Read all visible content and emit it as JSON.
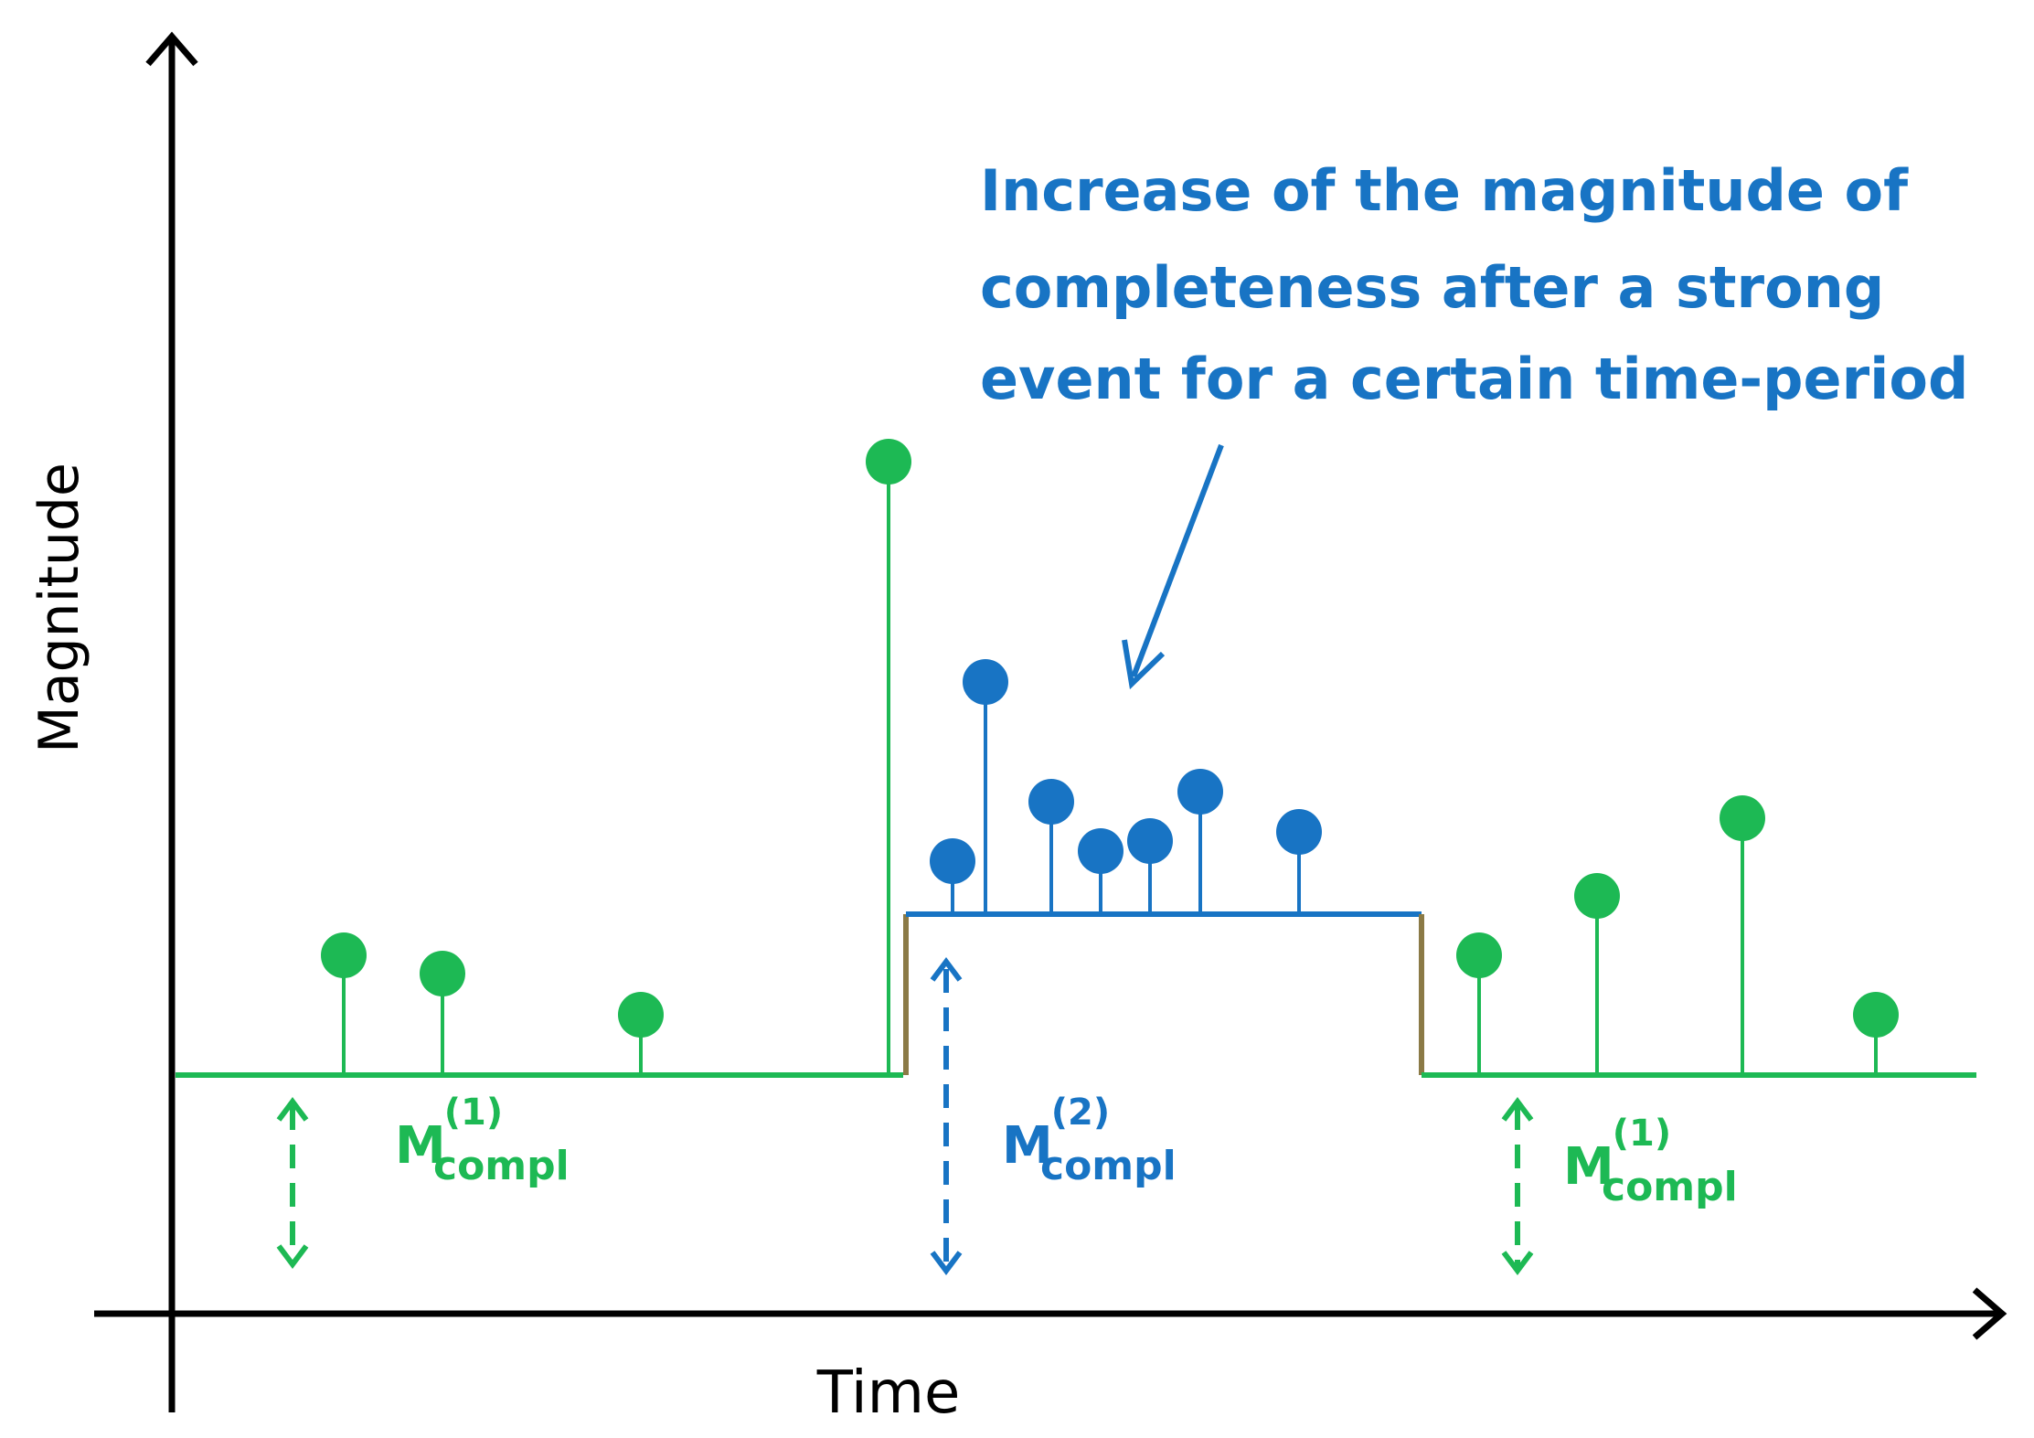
{
  "diagram": {
    "y_axis_label": "Magnitude",
    "x_axis_label": "Time",
    "annotation": {
      "lines": [
        "Increase of the magnitude of",
        "completeness after a strong",
        "event for a certain time-period"
      ],
      "color": "#1874C4"
    },
    "completeness_labels": [
      {
        "base": "M",
        "superscript": "(1)",
        "subscript": "compl",
        "color": "#1DB954"
      },
      {
        "base": "M",
        "superscript": "(2)",
        "subscript": "compl",
        "color": "#1874C4"
      },
      {
        "base": "M",
        "superscript": "(1)",
        "subscript": "compl",
        "color": "#1DB954"
      }
    ],
    "colors": {
      "green": "#1DB954",
      "blue": "#1874C4",
      "step": "#8B7A46",
      "axis": "#000000"
    }
  }
}
